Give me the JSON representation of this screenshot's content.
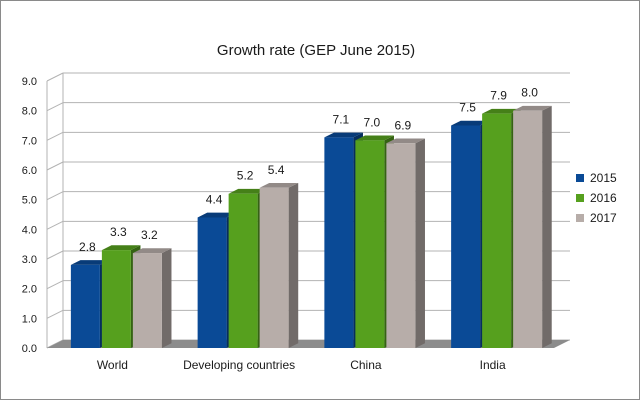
{
  "chart_data": {
    "type": "bar",
    "title": "Growth rate (GEP June 2015)",
    "categories": [
      "World",
      "Developing countries",
      "China",
      "India"
    ],
    "series": [
      {
        "name": "2015",
        "color": "#0a4a96",
        "values": [
          2.8,
          4.4,
          7.1,
          7.5
        ]
      },
      {
        "name": "2016",
        "color": "#56a01e",
        "values": [
          3.3,
          5.2,
          7.0,
          7.9
        ]
      },
      {
        "name": "2017",
        "color": "#b7ada9",
        "values": [
          3.2,
          5.4,
          6.9,
          8.0
        ]
      }
    ],
    "ylim": [
      0,
      9
    ],
    "yticks": [
      "0.0",
      "1.0",
      "2.0",
      "3.0",
      "4.0",
      "5.0",
      "6.0",
      "7.0",
      "8.0",
      "9.0"
    ],
    "value_labels": [
      [
        "2.8",
        "3.3",
        "3.2"
      ],
      [
        "4.4",
        "5.2",
        "5.4"
      ],
      [
        "7.1",
        "7.0",
        "6.9"
      ],
      [
        "7.5",
        "7.9",
        "8.0"
      ]
    ],
    "grid": true,
    "legend_position": "right",
    "style": "3d"
  }
}
